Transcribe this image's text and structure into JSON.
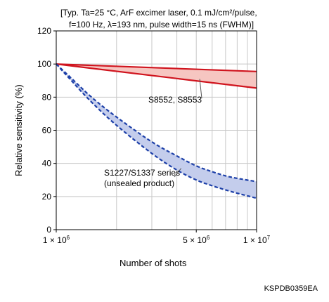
{
  "conditions": {
    "line1": "[Typ. Ta=25 °C, ArF excimer laser, 0.1 mJ/cm²/pulse,",
    "line2": "f=100 Hz, λ=193 nm, pulse width=15 ns (FWHM)]"
  },
  "figure_id": "KSPDB0359EA",
  "colors": {
    "red_line": "#d0141e",
    "red_fill": "#f6c6c1",
    "blue_line": "#1c3fa8",
    "blue_fill": "#c4cdec",
    "grid": "#c8c8c8"
  },
  "chart_data": {
    "type": "area",
    "title": "",
    "xlabel": "Number of shots",
    "ylabel": "Relative sensitivity (%)",
    "x_scale": "log",
    "xlim": [
      1000000,
      10000000
    ],
    "ylim": [
      0,
      120
    ],
    "y_ticks": [
      0,
      20,
      40,
      60,
      80,
      100,
      120
    ],
    "x_tick_labels": [
      {
        "value": 1000000,
        "mantissa": "1 × 10",
        "exp": "6"
      },
      {
        "value": 5000000,
        "mantissa": "5 × 10",
        "exp": "6"
      },
      {
        "value": 10000000,
        "mantissa": "1 × 10",
        "exp": "7"
      }
    ],
    "grid": true,
    "bands": [
      {
        "name": "S8552, S8553",
        "style": "solid",
        "color": "red",
        "upper": {
          "x": [
            1000000,
            10000000
          ],
          "y": [
            100,
            95.5
          ]
        },
        "lower": {
          "x": [
            1000000,
            10000000
          ],
          "y": [
            100,
            85.5
          ]
        }
      },
      {
        "name": "S1227/S1337 series (unsealed product)",
        "style": "dashed",
        "color": "blue",
        "upper": {
          "x": [
            1000000,
            1200000,
            1500000,
            2000000,
            3000000,
            4000000,
            5000000,
            6000000,
            7000000,
            8000000,
            10000000
          ],
          "y": [
            100,
            91,
            80,
            68,
            53,
            44.5,
            38.5,
            35,
            32.5,
            31,
            29
          ]
        },
        "lower": {
          "x": [
            1000000,
            1200000,
            1500000,
            2000000,
            3000000,
            4000000,
            5000000,
            6000000,
            7000000,
            8000000,
            10000000
          ],
          "y": [
            100,
            89.5,
            77,
            63,
            46,
            36,
            30,
            26.5,
            24,
            22,
            19
          ]
        }
      }
    ],
    "annotations": [
      {
        "text": "S8552, S8553",
        "lines": [
          "S8552, S8553"
        ],
        "target": {
          "x": 5200000,
          "y": 91
        }
      },
      {
        "text": "S1227/S1337 series (unsealed product)",
        "lines": [
          "S1227/S1337 series",
          "(unsealed product)"
        ],
        "target": {
          "x": 4200000,
          "y": 37
        }
      }
    ]
  }
}
